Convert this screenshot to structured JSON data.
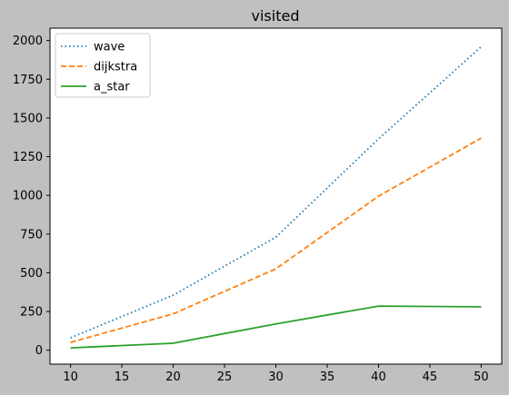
{
  "chart_data": {
    "type": "line",
    "title": "visited",
    "xlabel": "",
    "ylabel": "",
    "x": [
      10,
      20,
      30,
      40,
      50
    ],
    "xlim": [
      8,
      52
    ],
    "ylim": [
      -90,
      2080
    ],
    "xticks": [
      10,
      15,
      20,
      25,
      30,
      35,
      40,
      45,
      50
    ],
    "yticks": [
      0,
      250,
      500,
      750,
      1000,
      1250,
      1500,
      1750,
      2000
    ],
    "legend_position": "top-left",
    "grid": false,
    "series": [
      {
        "name": "wave",
        "values": [
          80,
          355,
          730,
          1365,
          1960
        ],
        "color": "#1f77b4",
        "style": "dotted"
      },
      {
        "name": "dijkstra",
        "values": [
          50,
          235,
          525,
          995,
          1370
        ],
        "color": "#ff7f0e",
        "style": "dashed"
      },
      {
        "name": "a_star",
        "values": [
          15,
          45,
          170,
          285,
          280
        ],
        "color": "#2ca02c",
        "style": "solid"
      }
    ]
  }
}
